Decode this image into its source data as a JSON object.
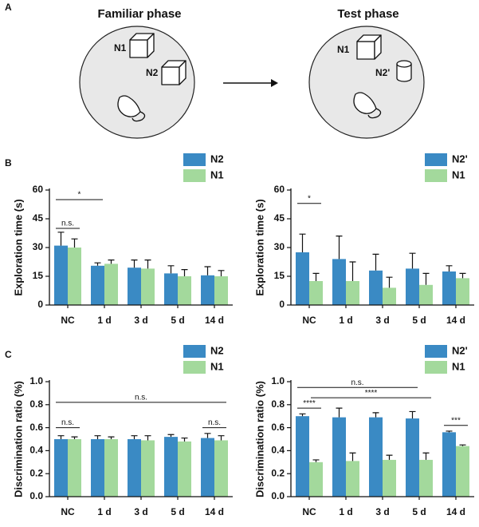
{
  "panel_labels": [
    "A",
    "B",
    "C"
  ],
  "diagram": {
    "left": {
      "title": "Familiar phase",
      "objects": [
        "N1",
        "N2"
      ]
    },
    "right": {
      "title": "Test phase",
      "objects": [
        "N1",
        "N2'"
      ]
    }
  },
  "chart_data": [
    {
      "type": "bar",
      "y_label": "Exploration time (s)",
      "categories": [
        "NC",
        "1 d",
        "3 d",
        "5 d",
        "14 d"
      ],
      "series": [
        {
          "name": "N2",
          "color": "#3a8ac4",
          "values": [
            31,
            20.5,
            19.5,
            16.5,
            15.5
          ],
          "errors": [
            7,
            1.5,
            4,
            4,
            4.5
          ]
        },
        {
          "name": "N1",
          "color": "#a3d99c",
          "values": [
            30,
            21.5,
            19,
            15,
            15
          ],
          "errors": [
            4.5,
            2,
            4.5,
            3.5,
            3
          ]
        }
      ],
      "ylim": [
        0,
        60
      ],
      "yticks": [
        0,
        15,
        30,
        45,
        60
      ],
      "annotations": [
        {
          "text": "*",
          "y": 55,
          "span": [
            0,
            0,
            1,
            0
          ]
        },
        {
          "text": "n.s.",
          "y": 40,
          "span": [
            0,
            0,
            0,
            1
          ]
        }
      ]
    },
    {
      "type": "bar",
      "y_label": "Exploration time (s)",
      "categories": [
        "NC",
        "1 d",
        "3 d",
        "5 d",
        "14 d"
      ],
      "series": [
        {
          "name": "N2'",
          "color": "#3a8ac4",
          "values": [
            27.5,
            24,
            18,
            19,
            17.5
          ],
          "errors": [
            9.5,
            12,
            8.5,
            8,
            3
          ]
        },
        {
          "name": "N1",
          "color": "#a3d99c",
          "values": [
            12.5,
            12.5,
            9,
            10.5,
            14
          ],
          "errors": [
            4,
            10,
            5.5,
            6,
            2.5
          ]
        }
      ],
      "ylim": [
        0,
        60
      ],
      "yticks": [
        0,
        15,
        30,
        45,
        60
      ],
      "annotations": [
        {
          "text": "*",
          "y": 53,
          "span": [
            0,
            0,
            0,
            1
          ]
        }
      ]
    },
    {
      "type": "bar",
      "y_label": "Discrimination ratio (%)",
      "categories": [
        "NC",
        "1 d",
        "3 d",
        "5 d",
        "14 d"
      ],
      "series": [
        {
          "name": "N2",
          "color": "#3a8ac4",
          "values": [
            0.5,
            0.5,
            0.5,
            0.52,
            0.51
          ],
          "errors": [
            0.03,
            0.03,
            0.03,
            0.02,
            0.04
          ]
        },
        {
          "name": "N1",
          "color": "#a3d99c",
          "values": [
            0.5,
            0.5,
            0.49,
            0.48,
            0.49
          ],
          "errors": [
            0.02,
            0.02,
            0.04,
            0.03,
            0.04
          ]
        }
      ],
      "ylim": [
        0,
        1.0
      ],
      "yticks": [
        {
          "value": 0,
          "label": "0.0"
        },
        0.2,
        0.4,
        0.6,
        0.8,
        {
          "value": 1.0,
          "label": "1.0"
        }
      ],
      "annotations": [
        {
          "text": "n.s.",
          "y": 0.82,
          "span": [
            0,
            0,
            4,
            1
          ]
        },
        {
          "text": "n.s.",
          "y": 0.6,
          "span": [
            0,
            0,
            0,
            1
          ]
        },
        {
          "text": "n.s.",
          "y": 0.6,
          "span": [
            4,
            0,
            4,
            1
          ]
        }
      ]
    },
    {
      "type": "bar",
      "y_label": "Discrimination ratio (%)",
      "categories": [
        "NC",
        "1 d",
        "3 d",
        "5 d",
        "14 d"
      ],
      "series": [
        {
          "name": "N2'",
          "color": "#3a8ac4",
          "values": [
            0.7,
            0.69,
            0.69,
            0.68,
            0.56
          ],
          "errors": [
            0.02,
            0.08,
            0.04,
            0.06,
            0.01
          ]
        },
        {
          "name": "N1",
          "color": "#a3d99c",
          "values": [
            0.3,
            0.31,
            0.32,
            0.32,
            0.44
          ],
          "errors": [
            0.02,
            0.07,
            0.04,
            0.06,
            0.01
          ]
        }
      ],
      "ylim": [
        0,
        1.0
      ],
      "yticks": [
        {
          "value": 0,
          "label": "0.0"
        },
        0.2,
        0.4,
        0.6,
        0.8,
        {
          "value": 1.0,
          "label": "1.0"
        }
      ],
      "annotations": [
        {
          "text": "n.s.",
          "y": 0.95,
          "span": [
            0,
            0,
            3,
            0
          ]
        },
        {
          "text": "****",
          "y": 0.86,
          "span": [
            0,
            1,
            3,
            1
          ]
        },
        {
          "text": "****",
          "y": 0.77,
          "span": [
            0,
            0,
            0,
            1
          ]
        },
        {
          "text": "***",
          "y": 0.62,
          "span": [
            4,
            0,
            4,
            1
          ]
        }
      ]
    }
  ]
}
